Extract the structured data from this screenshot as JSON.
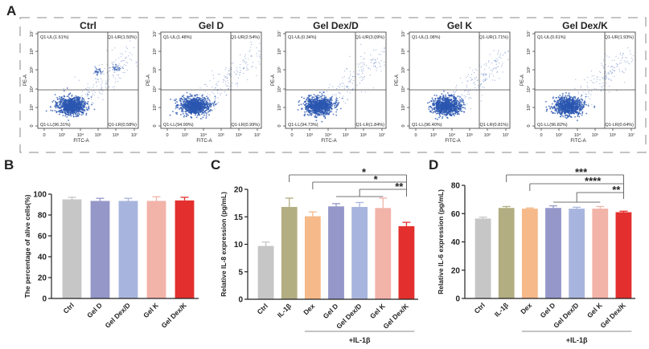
{
  "panel_labels": [
    "A",
    "B",
    "C",
    "D"
  ],
  "chart_data": [
    {
      "type": "scatter",
      "panel": "A",
      "xlabel": "FITC-A",
      "ylabel": "PE-A",
      "x_ticks": [
        "0",
        "10³",
        "10⁴",
        "10⁵",
        "10⁶",
        "10⁷"
      ],
      "y_ticks": [
        "0",
        "10³",
        "10⁴",
        "10⁵",
        "10⁶",
        "10⁷"
      ],
      "plots": [
        {
          "title": "Ctrl",
          "UL": "Q1-UL(1.61%)",
          "UR": "Q1-UR(1.50%)",
          "LL": "Q1-LL(96.31%)",
          "LR": "Q1-LR(0.58%)"
        },
        {
          "title": "Gel D",
          "UL": "Q1-UL(1.48%)",
          "UR": "Q1-UR(2.54%)",
          "LL": "Q1-LL(94.99%)",
          "LR": "Q1-LR(0.99%)"
        },
        {
          "title": "Gel Dex/D",
          "UL": "Q1-UL(0.34%)",
          "UR": "Q1-UR(3.09%)",
          "LL": "Q1-LL(94.73%)",
          "LR": "Q1-LR(1.84%)"
        },
        {
          "title": "Gel K",
          "UL": "Q1-UL(1.08%)",
          "UR": "Q1-UR(1.71%)",
          "LL": "Q1-LL(96.40%)",
          "LR": "Q1-LR(0.81%)"
        },
        {
          "title": "Gel Dex/K",
          "UL": "Q1-UL(0.61%)",
          "UR": "Q1-UR(1.93%)",
          "LL": "Q1-LL(96.82%)",
          "LR": "Q1-LR(0.64%)"
        }
      ],
      "point_color": "#2a56b0"
    },
    {
      "type": "bar",
      "panel": "B",
      "ylabel": "The percentage of alive cells(%)",
      "ylim": [
        0,
        100
      ],
      "yticks": [
        0,
        20,
        40,
        60,
        80,
        100
      ],
      "categories": [
        "Ctrl",
        "Gel D",
        "Gel Dex/D",
        "Gel K",
        "Gel Dex/K"
      ],
      "values": [
        95,
        93.5,
        93.5,
        93.5,
        94
      ],
      "errors": [
        2,
        2.5,
        2.5,
        4,
        3
      ],
      "colors": [
        "#c6c6c6",
        "#9597c9",
        "#a7b5de",
        "#f2b3a9",
        "#e3302e"
      ],
      "brackets": [],
      "group_label": ""
    },
    {
      "type": "bar",
      "panel": "C",
      "ylabel": "Relative IL-8 expression (pg/mL)",
      "ylim": [
        0,
        20
      ],
      "yticks": [
        0,
        5,
        10,
        15,
        20
      ],
      "categories": [
        "Ctrl",
        "IL-1β",
        "Dex",
        "Gel D",
        "Gel Dex/D",
        "Gel K",
        "Gel Dex/K"
      ],
      "values": [
        9.7,
        16.8,
        15.1,
        16.9,
        16.8,
        16.6,
        13.3
      ],
      "errors": [
        0.7,
        1.6,
        0.8,
        0.5,
        0.8,
        1.8,
        0.7
      ],
      "colors": [
        "#c6c6c6",
        "#b3ae82",
        "#f5b98a",
        "#9597c9",
        "#a7b5de",
        "#f2b3a9",
        "#e3302e"
      ],
      "brackets": [
        {
          "from": "IL-1β",
          "to": "Gel Dex/K",
          "label": "*"
        },
        {
          "from": "Dex",
          "to": "Gel Dex/K",
          "label": "*"
        },
        {
          "from": "Gel Dex/D",
          "to": "Gel Dex/K",
          "label": "**",
          "span": [
            "Gel D",
            "Gel K"
          ]
        }
      ],
      "group_label": "+IL-1β",
      "group_span": [
        "Dex",
        "Gel Dex/K"
      ]
    },
    {
      "type": "bar",
      "panel": "D",
      "ylabel": "Relative IL-6 expression (pg/mL)",
      "ylim": [
        0,
        80
      ],
      "yticks": [
        0,
        20,
        40,
        60,
        80
      ],
      "categories": [
        "Ctrl",
        "IL-1β",
        "Dex",
        "Gel D",
        "Gel Dex/D",
        "Gel K",
        "Gel Dex/K"
      ],
      "values": [
        56.5,
        64,
        63.5,
        64,
        63.5,
        63.5,
        61
      ],
      "errors": [
        1,
        1,
        0.5,
        1.5,
        1,
        1.5,
        0.7
      ],
      "colors": [
        "#c6c6c6",
        "#b3ae82",
        "#f5b98a",
        "#9597c9",
        "#a7b5de",
        "#f2b3a9",
        "#e3302e"
      ],
      "brackets": [
        {
          "from": "IL-1β",
          "to": "Gel Dex/K",
          "label": "***"
        },
        {
          "from": "Dex",
          "to": "Gel Dex/K",
          "label": "****"
        },
        {
          "from": "Gel Dex/D",
          "to": "Gel Dex/K",
          "label": "**",
          "span": [
            "Gel D",
            "Gel K"
          ]
        }
      ],
      "group_label": "+IL-1β",
      "group_span": [
        "Dex",
        "Gel Dex/K"
      ]
    }
  ]
}
